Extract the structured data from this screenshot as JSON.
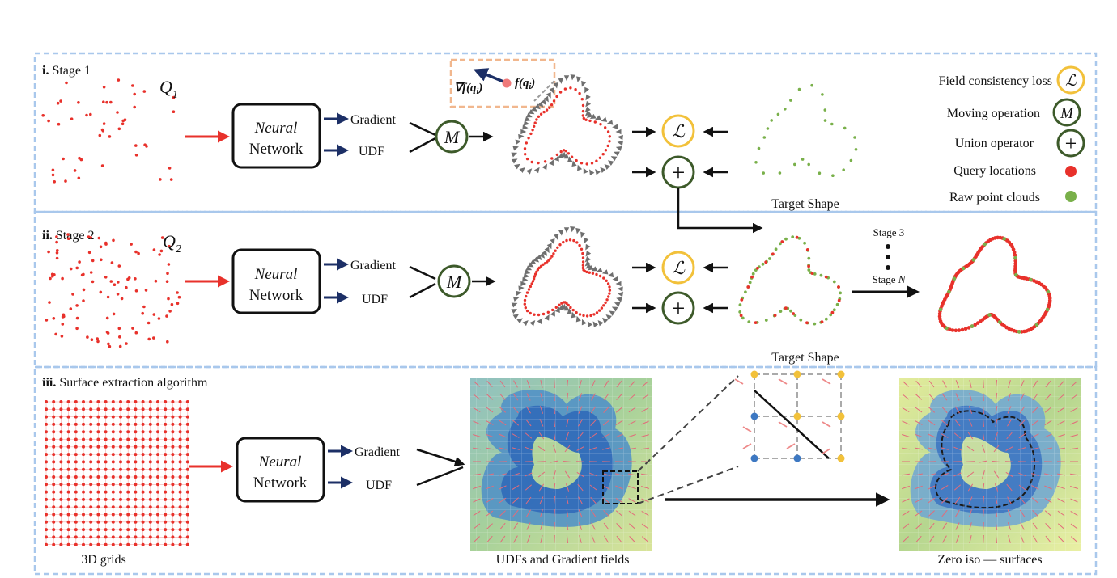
{
  "stage1": {
    "label_num": "i.",
    "label_text": "Stage 1",
    "query_symbol": "Q",
    "query_sub": "1",
    "nn_line1": "Neural",
    "nn_line2": "Network",
    "gradient": "Gradient",
    "udf": "UDF",
    "move_symbol": "M",
    "loss_symbol": "ℒ",
    "union_symbol": "+",
    "target_caption": "Target Shape",
    "inset_grad": "∇f(q",
    "inset_grad_sub": "i",
    "inset_grad_close": ")",
    "inset_f": "f(q",
    "inset_f_sub": "i",
    "inset_f_close": ")"
  },
  "legend": {
    "items": [
      {
        "label": "Field consistency loss",
        "symbol": "ℒ"
      },
      {
        "label": "Moving operation",
        "symbol": "M"
      },
      {
        "label": "Union operator",
        "symbol": "+"
      },
      {
        "label": "Query locations",
        "symbol": ""
      },
      {
        "label": "Raw point clouds",
        "symbol": ""
      }
    ]
  },
  "stage2": {
    "label_num": "ii.",
    "label_text": "Stage 2",
    "query_symbol": "Q",
    "query_sub": "2",
    "nn_line1": "Neural",
    "nn_line2": "Network",
    "gradient": "Gradient",
    "udf": "UDF",
    "move_symbol": "M",
    "loss_symbol": "ℒ",
    "union_symbol": "+",
    "target_caption": "Target Shape",
    "stage3": "Stage 3",
    "stageN_prefix": "Stage ",
    "stageN_var": "N"
  },
  "stage3": {
    "label_num": "iii.",
    "label_text": "Surface extraction algorithm",
    "grid_caption": "3D grids",
    "nn_line1": "Neural",
    "nn_line2": "Network",
    "gradient": "Gradient",
    "udf": "UDF",
    "udf_caption": "UDFs and Gradient fields",
    "iso_caption": "Zero iso — surfaces"
  },
  "colors": {
    "query": "#e8312b",
    "raw": "#79b04a",
    "frame": "#a9c8ec",
    "dark_green": "#3d5a2a",
    "gold": "#f2c13a",
    "navy": "#1c2f66",
    "inset": "#f1b78e"
  }
}
